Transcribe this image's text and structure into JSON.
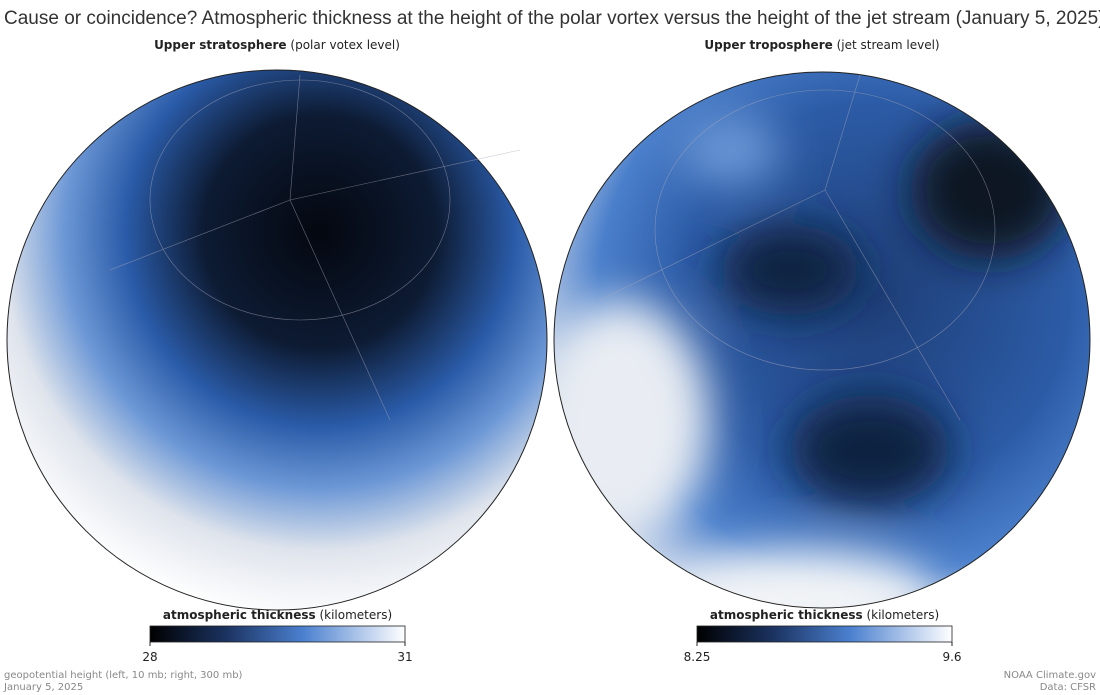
{
  "title": "Cause or coincidence? Atmospheric thickness at the height of the polar vortex versus the height of the jet stream (January 5, 2025)",
  "panels": [
    {
      "heading": "Upper stratosphere",
      "heading_note": "(polar votex level)",
      "legend_title": "atmospheric thickness",
      "legend_unit": "(kilometers)",
      "range": [
        28,
        31
      ],
      "ticks": [
        28,
        31
      ]
    },
    {
      "heading": "Upper troposphere",
      "heading_note": "(jet stream level)",
      "legend_title": "atmospheric thickness",
      "legend_unit": "(kilometers)",
      "range": [
        8.25,
        9.6
      ],
      "ticks": [
        8.25,
        9.6
      ]
    }
  ],
  "footer": {
    "left": [
      "geopotential height (left, 10 mb; right, 300 mb)",
      "January 5, 2025"
    ],
    "right": [
      "NOAA Climate.gov",
      "Data: CFSR"
    ]
  }
}
